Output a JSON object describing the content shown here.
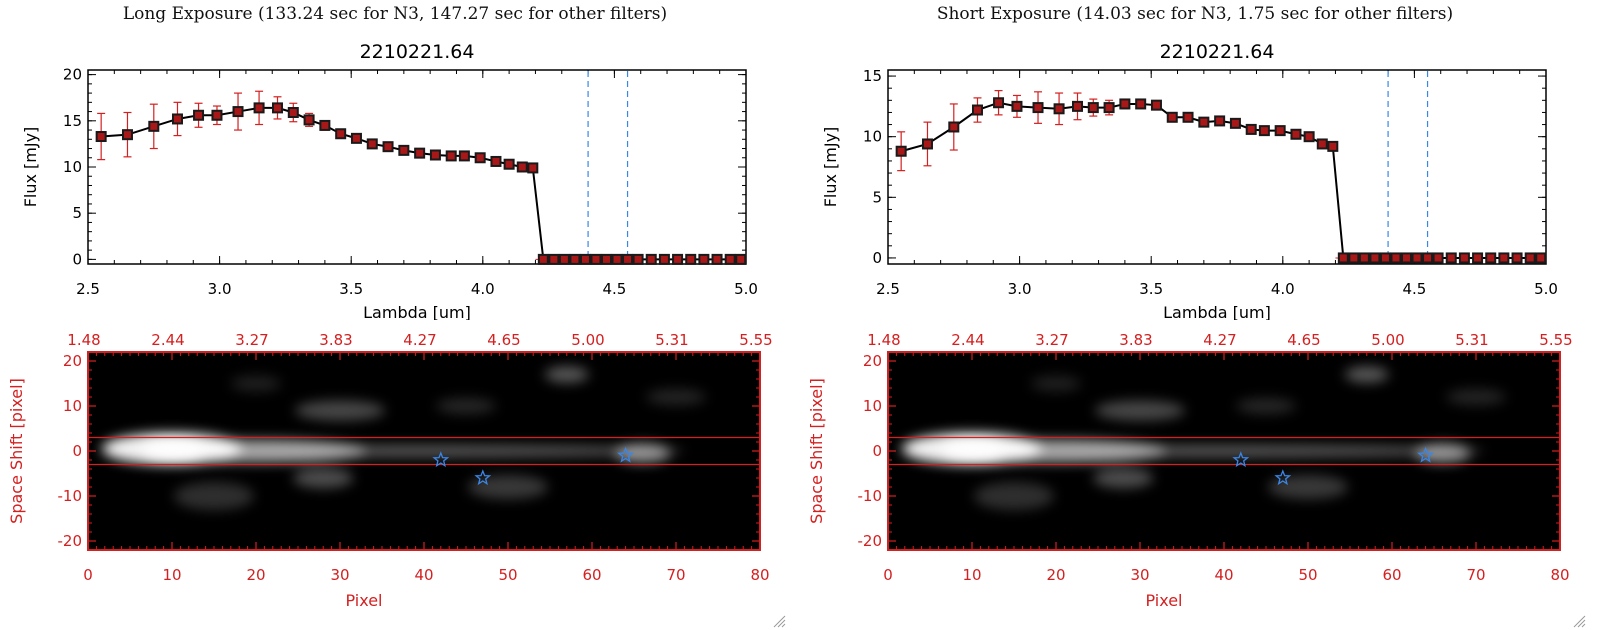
{
  "colors": {
    "axis": "#000000",
    "red": "#d42020",
    "blue": "#3a86e8",
    "marker": "#1a1a1a"
  },
  "panels": [
    {
      "exposure_title": "Long Exposure (133.24 sec for N3, 147.27 sec for other filters)",
      "spectrum_title": "2210221.64",
      "image_grip_icon": "resize-grip-icon"
    },
    {
      "exposure_title": "Short Exposure (14.03 sec for N3, 1.75 sec for other filters)",
      "spectrum_title": "2210221.64",
      "image_grip_icon": "resize-grip-icon"
    }
  ],
  "chart_data": [
    {
      "type": "line",
      "title": "2210221.64",
      "xlabel": "Lambda [um]",
      "ylabel": "Flux [mJy]",
      "xlim": [
        2.5,
        5.0
      ],
      "ylim": [
        -0.5,
        20.5
      ],
      "xticks": [
        "2.5",
        "3.0",
        "3.5",
        "4.0",
        "4.5",
        "5.0"
      ],
      "yticks": [
        "0",
        "5",
        "10",
        "15",
        "20"
      ],
      "vlines": [
        4.4,
        4.55
      ],
      "series": [
        {
          "x": [
            2.55,
            2.65,
            2.75,
            2.84,
            2.92,
            2.99,
            3.07,
            3.15,
            3.22,
            3.28,
            3.34,
            3.4,
            3.46,
            3.52,
            3.58,
            3.64,
            3.7,
            3.76,
            3.82,
            3.88,
            3.93,
            3.99,
            4.05,
            4.1,
            4.15,
            4.19,
            4.23,
            4.27,
            4.31,
            4.35,
            4.39,
            4.43,
            4.47,
            4.51,
            4.55,
            4.59,
            4.64,
            4.69,
            4.74,
            4.79,
            4.84,
            4.89,
            4.94,
            4.98
          ],
          "y": [
            13.3,
            13.5,
            14.4,
            15.2,
            15.6,
            15.6,
            16.0,
            16.4,
            16.4,
            15.9,
            15.1,
            14.5,
            13.6,
            13.1,
            12.5,
            12.2,
            11.8,
            11.5,
            11.3,
            11.2,
            11.2,
            11.0,
            10.6,
            10.3,
            10.0,
            9.9,
            0,
            0,
            0,
            0,
            0,
            0,
            0,
            0,
            0,
            0,
            0,
            0,
            0,
            0,
            0,
            0,
            0,
            0
          ],
          "err": [
            2.5,
            2.4,
            2.4,
            1.8,
            1.3,
            1.0,
            2.0,
            1.8,
            1.2,
            1.0,
            0.7,
            0.5,
            0.4,
            0.3,
            0.3,
            0.3,
            0.3,
            0.3,
            0.2,
            0.2,
            0.2,
            0.2,
            0.2,
            0.2,
            0.2,
            0.2,
            0,
            0,
            0,
            0,
            0,
            0,
            0,
            0,
            0,
            0,
            0,
            0,
            0,
            0,
            0,
            0,
            0,
            0
          ]
        }
      ]
    },
    {
      "type": "heatmap",
      "xlabel": "Pixel",
      "ylabel": "Space Shift [pixel]",
      "xlim": [
        0,
        80
      ],
      "ylim": [
        -22,
        22
      ],
      "xticks": [
        "0",
        "10",
        "20",
        "30",
        "40",
        "50",
        "60",
        "70",
        "80"
      ],
      "yticks": [
        "-20",
        "-10",
        "0",
        "10",
        "20"
      ],
      "top_ticks": [
        "1.48",
        "2.44",
        "3.27",
        "3.83",
        "4.27",
        "4.65",
        "5.00",
        "5.31",
        "5.55"
      ],
      "band": [
        -3,
        3
      ],
      "stars": [
        [
          42,
          -2
        ],
        [
          47,
          -6
        ],
        [
          64,
          -1
        ]
      ]
    },
    {
      "type": "line",
      "title": "2210221.64",
      "xlabel": "Lambda [um]",
      "ylabel": "Flux [mJy]",
      "xlim": [
        2.5,
        5.0
      ],
      "ylim": [
        -0.5,
        15.5
      ],
      "xticks": [
        "2.5",
        "3.0",
        "3.5",
        "4.0",
        "4.5",
        "5.0"
      ],
      "yticks": [
        "0",
        "5",
        "10",
        "15"
      ],
      "vlines": [
        4.4,
        4.55
      ],
      "series": [
        {
          "x": [
            2.55,
            2.65,
            2.75,
            2.84,
            2.92,
            2.99,
            3.07,
            3.15,
            3.22,
            3.28,
            3.34,
            3.4,
            3.46,
            3.52,
            3.58,
            3.64,
            3.7,
            3.76,
            3.82,
            3.88,
            3.93,
            3.99,
            4.05,
            4.1,
            4.15,
            4.19,
            4.23,
            4.27,
            4.31,
            4.35,
            4.39,
            4.43,
            4.47,
            4.51,
            4.55,
            4.59,
            4.64,
            4.69,
            4.74,
            4.79,
            4.84,
            4.89,
            4.94,
            4.98
          ],
          "y": [
            8.8,
            9.4,
            10.8,
            12.2,
            12.8,
            12.5,
            12.4,
            12.3,
            12.5,
            12.4,
            12.4,
            12.7,
            12.7,
            12.6,
            11.6,
            11.6,
            11.2,
            11.3,
            11.1,
            10.6,
            10.5,
            10.5,
            10.2,
            10.0,
            9.4,
            9.2,
            0,
            0,
            0,
            0,
            0,
            0,
            0,
            0,
            0,
            0,
            0,
            0,
            0,
            0,
            0,
            0,
            0,
            0
          ],
          "err": [
            1.6,
            1.8,
            1.9,
            1.0,
            1.0,
            0.9,
            1.3,
            1.3,
            1.1,
            0.7,
            0.6,
            0.4,
            0.3,
            0.3,
            0.2,
            0.2,
            0.2,
            0.2,
            0.2,
            0.2,
            0.2,
            0.2,
            0.2,
            0.2,
            0.2,
            0.2,
            0,
            0,
            0,
            0,
            0,
            0,
            0,
            0,
            0,
            0,
            0,
            0,
            0,
            0,
            0,
            0,
            0,
            0
          ]
        }
      ]
    },
    {
      "type": "heatmap",
      "xlabel": "Pixel",
      "ylabel": "Space Shift [pixel]",
      "xlim": [
        0,
        80
      ],
      "ylim": [
        -22,
        22
      ],
      "xticks": [
        "0",
        "10",
        "20",
        "30",
        "40",
        "50",
        "60",
        "70",
        "80"
      ],
      "yticks": [
        "-20",
        "-10",
        "0",
        "10",
        "20"
      ],
      "top_ticks": [
        "1.48",
        "2.44",
        "3.27",
        "3.83",
        "4.27",
        "4.65",
        "5.00",
        "5.31",
        "5.55"
      ],
      "band": [
        -3,
        3
      ],
      "stars": [
        [
          42,
          -2
        ],
        [
          47,
          -6
        ],
        [
          64,
          -1
        ]
      ]
    }
  ]
}
